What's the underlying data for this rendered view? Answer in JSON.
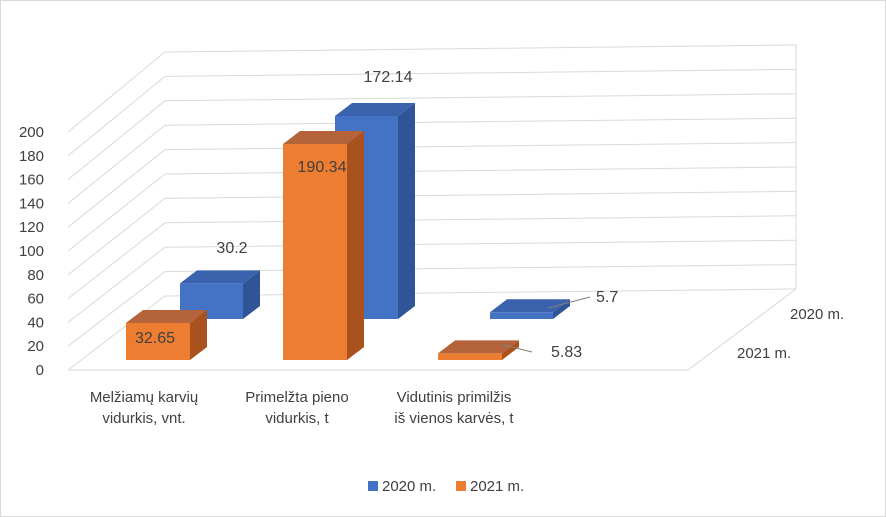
{
  "chart_data": {
    "type": "bar",
    "title": "",
    "xlabel": "",
    "ylabel": "",
    "categories_lines": [
      [
        "Melžiamų karvių",
        "vidurkis, vnt."
      ],
      [
        "Primelžta pieno",
        "vidurkis, t"
      ],
      [
        "Vidutinis primilžis",
        "iš vienos karvės, t"
      ]
    ],
    "series": [
      {
        "name": "2020 m.",
        "values": [
          30.2,
          172.14,
          5.7
        ],
        "labels": [
          "30.2",
          "172.14",
          "5.7"
        ]
      },
      {
        "name": "2021 m.",
        "values": [
          32.65,
          190.34,
          5.83
        ],
        "labels": [
          "32.65",
          "190.34",
          "5.83"
        ]
      }
    ],
    "depth_labels": [
      "2020 m.",
      "2021 m."
    ],
    "yticks": [
      "0",
      "20",
      "40",
      "60",
      "80",
      "100",
      "120",
      "140",
      "160",
      "180",
      "200"
    ],
    "ylim": [
      0,
      200
    ],
    "grid": true,
    "legend": "bottom",
    "legend_entries": [
      "2020 m.",
      "2021 m."
    ],
    "colors": {
      "2020 m.": {
        "front": "#4472c4",
        "top": "#3a62ad",
        "side": "#2f5597"
      },
      "2021 m.": {
        "front": "#ed7d31",
        "top": "#b5633b",
        "side": "#a9521e"
      },
      "grid": "#d9d9d9",
      "text": "#404040"
    }
  }
}
